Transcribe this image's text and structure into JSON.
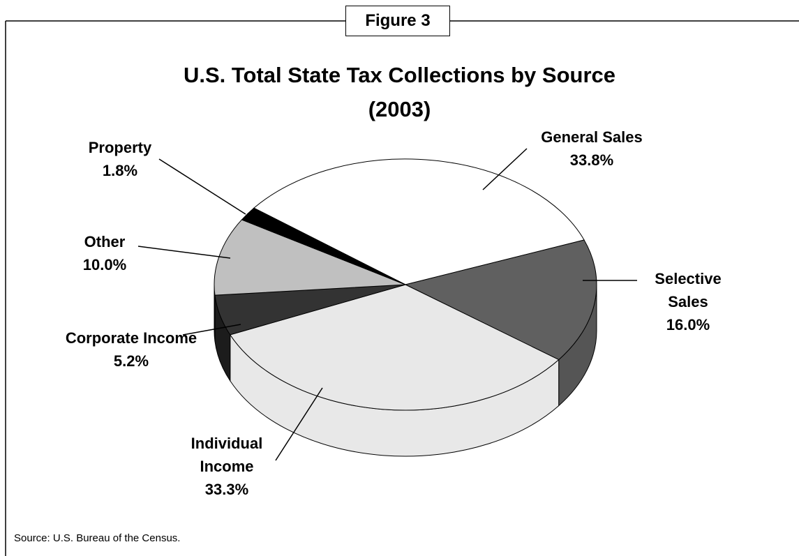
{
  "figure_label": "Figure 3",
  "source": "Source:  U.S. Bureau of the Census.",
  "chart_data": {
    "type": "pie",
    "title": "U.S. Total State Tax Collections by Source",
    "subtitle": "(2003)",
    "categories": [
      "General Sales",
      "Selective Sales",
      "Individual Income",
      "Corporate Income",
      "Other",
      "Property"
    ],
    "values": [
      33.8,
      16.0,
      33.3,
      5.2,
      10.0,
      1.8
    ],
    "value_labels": [
      "33.8%",
      "16.0%",
      "33.3%",
      "5.2%",
      "10.0%",
      "1.8%"
    ],
    "colors": [
      "#ffffff",
      "#606060",
      "#e8e8e8",
      "#333333",
      "#c0c0c0",
      "#000000"
    ]
  }
}
